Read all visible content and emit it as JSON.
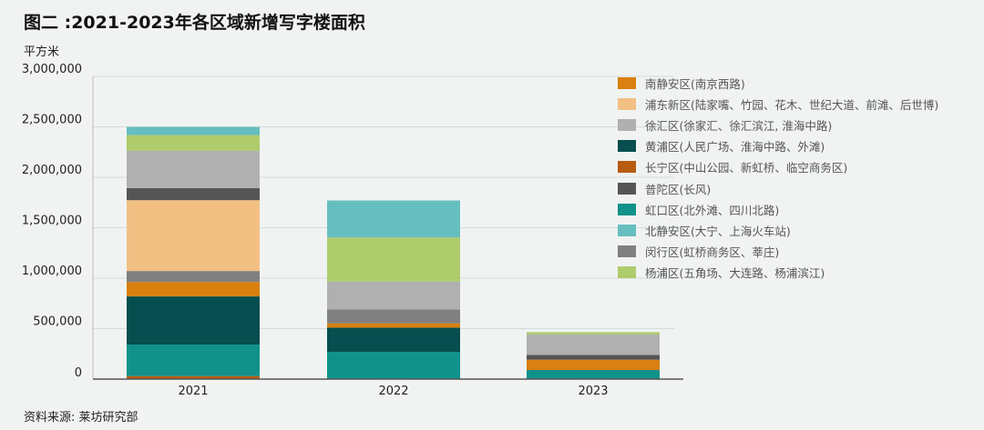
{
  "title": "图二 :2021-2023年各区域新增写字楼面积",
  "source": "资料来源: 莱坊研究部",
  "chart_data": {
    "type": "bar",
    "stacked": true,
    "title": "图二 :2021-2023年各区域新增写字楼面积",
    "ylabel": "平方米",
    "xlabel": "",
    "ylim": [
      0,
      3000000
    ],
    "yticks": [
      "0",
      "500,000",
      "1,000,000",
      "1,500,000",
      "2,000,000",
      "2,500,000",
      "3,000,000"
    ],
    "categories": [
      "2021",
      "2022",
      "2023"
    ],
    "legend_position": "right",
    "series": [
      {
        "name": "长宁区(中山公园、新虹桥、临空商务区)",
        "color": "#b85c10",
        "values": [
          30000,
          0,
          0
        ]
      },
      {
        "name": "虹口区(北外滩、四川北路)",
        "color": "#10928a",
        "values": [
          312000,
          270000,
          90000
        ]
      },
      {
        "name": "黄浦区(人民广场、淮海中路、外滩)",
        "color": "#064e4f",
        "values": [
          477000,
          240000,
          0
        ]
      },
      {
        "name": "南静安区(南京西路)",
        "color": "#d98011",
        "values": [
          144000,
          42000,
          102000
        ]
      },
      {
        "name": "闵行区(虹桥商务区、莘庄)",
        "color": "#808080",
        "values": [
          108000,
          138000,
          0
        ]
      },
      {
        "name": "浦东新区(陆家嘴、竹园、花木、世纪大道、前滩、后世博)",
        "color": "#f2c083",
        "values": [
          702000,
          0,
          0
        ]
      },
      {
        "name": "普陀区(长风)",
        "color": "#555555",
        "values": [
          120000,
          0,
          48000
        ]
      },
      {
        "name": "徐汇区(徐家汇、徐汇滨江, 淮海中路)",
        "color": "#b0b0b0",
        "values": [
          369000,
          276000,
          201000
        ]
      },
      {
        "name": "杨浦区(五角场、大连路、杨浦滨江)",
        "color": "#aecc6c",
        "values": [
          156000,
          438000,
          24000
        ]
      },
      {
        "name": "北静安区(大宁、上海火车站)",
        "color": "#66bebf",
        "values": [
          81000,
          366000,
          0
        ]
      }
    ],
    "legend_order": [
      "南静安区(南京西路)",
      "浦东新区(陆家嘴、竹园、花木、世纪大道、前滩、后世博)",
      "徐汇区(徐家汇、徐汇滨江, 淮海中路)",
      "黄浦区(人民广场、淮海中路、外滩)",
      "长宁区(中山公园、新虹桥、临空商务区)",
      "普陀区(长风)",
      "虹口区(北外滩、四川北路)",
      "北静安区(大宁、上海火车站)",
      "闵行区(虹桥商务区、莘庄)",
      "杨浦区(五角场、大连路、杨浦滨江)"
    ]
  }
}
